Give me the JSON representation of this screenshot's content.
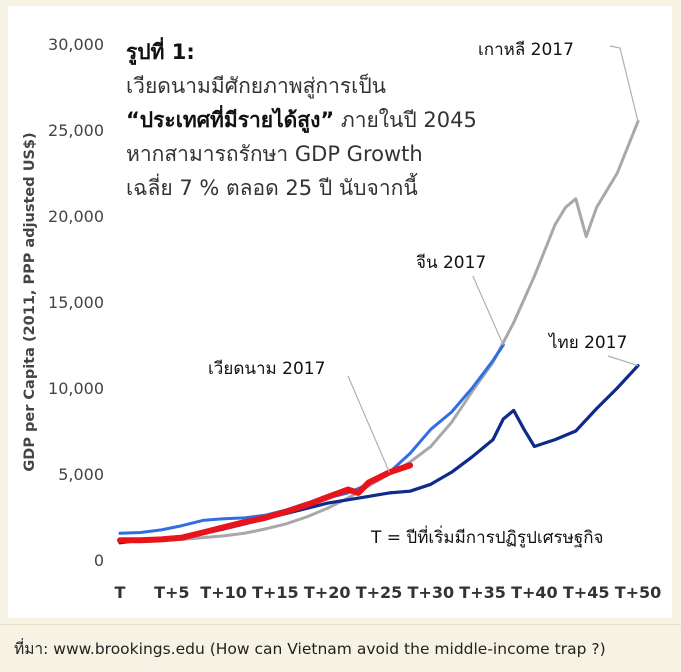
{
  "chart_data": {
    "type": "line",
    "title": "รูปที่ 1:",
    "subtitle_lines": [
      "เวียดนามมีศักยภาพสู่การเป็น",
      "“ประเทศที่มีรายได้สูง” ภายในปี 2045",
      "หากสามารถรักษา GDP Growth",
      "เฉลี่ย 7 % ตลอด 25 ปี นับจากนี้"
    ],
    "subtitle_emphasis": "“ประเทศที่มีรายได้สูง”",
    "subtitle_rest": " ภายในปี 2045",
    "ylabel": "GDP per Capita (2011, PPP adjusted US$)",
    "xlabel": "",
    "ylim": [
      0,
      30000
    ],
    "yticks": [
      0,
      5000,
      10000,
      15000,
      20000,
      25000,
      30000
    ],
    "ytick_labels": [
      "0",
      "5,000",
      "10,000",
      "15,000",
      "20,000",
      "25,000",
      "30,000"
    ],
    "xlim": [
      0,
      50
    ],
    "xticks": [
      0,
      5,
      10,
      15,
      20,
      25,
      30,
      35,
      40,
      45,
      50
    ],
    "xtick_labels": [
      "T",
      "T+5",
      "T+10",
      "T+15",
      "T+20",
      "T+25",
      "T+30",
      "T+35",
      "T+40",
      "T+45",
      "T+50"
    ],
    "legend_note": "T =  ปีที่เริ่มมีการปฏิรูปเศรษฐกิจ",
    "grid": false,
    "series": [
      {
        "name": "เกาหลี 2017",
        "color": "#a8a8a8",
        "x": [
          0,
          2,
          4,
          6,
          8,
          10,
          12,
          14,
          16,
          18,
          20,
          22,
          24,
          26,
          28,
          30,
          32,
          34,
          36,
          38,
          40,
          42,
          43,
          44,
          45,
          46,
          48,
          50
        ],
        "values": [
          1050,
          1100,
          1150,
          1200,
          1300,
          1400,
          1550,
          1800,
          2100,
          2500,
          3000,
          3600,
          4300,
          5000,
          5700,
          6600,
          8000,
          9800,
          11500,
          13800,
          16500,
          19500,
          20500,
          21000,
          18800,
          20500,
          22500,
          25500
        ]
      },
      {
        "name": "จีน 2017",
        "color": "#2f6fe0",
        "x": [
          0,
          2,
          4,
          6,
          8,
          10,
          12,
          14,
          16,
          18,
          20,
          22,
          24,
          26,
          28,
          30,
          32,
          34,
          36,
          37
        ],
        "values": [
          1550,
          1600,
          1750,
          2000,
          2300,
          2400,
          2450,
          2600,
          2900,
          3300,
          3600,
          3900,
          4400,
          5100,
          6200,
          7600,
          8600,
          10000,
          11600,
          12500
        ]
      },
      {
        "name": "ไทย 2017",
        "color": "#0d2a8c",
        "x": [
          0,
          2,
          4,
          6,
          8,
          10,
          12,
          14,
          16,
          18,
          20,
          22,
          24,
          26,
          28,
          30,
          32,
          34,
          36,
          37,
          38,
          39,
          40,
          41,
          42,
          44,
          46,
          48,
          50
        ],
        "values": [
          1000,
          1150,
          1200,
          1300,
          1550,
          1800,
          2100,
          2400,
          2700,
          3000,
          3300,
          3500,
          3700,
          3900,
          4000,
          4400,
          5100,
          6000,
          7000,
          8200,
          8700,
          7600,
          6600,
          6800,
          7000,
          7500,
          8800,
          10000,
          11300
        ]
      },
      {
        "name": "เวียดนาม 2017",
        "color": "#e8141b",
        "x": [
          0,
          2,
          4,
          6,
          8,
          10,
          12,
          14,
          16,
          18,
          20,
          22,
          23,
          24,
          25,
          26,
          28
        ],
        "values": [
          1150,
          1150,
          1200,
          1300,
          1600,
          1900,
          2200,
          2450,
          2800,
          3200,
          3650,
          4100,
          3900,
          4500,
          4800,
          5100,
          5500
        ]
      }
    ],
    "annotations": [
      {
        "text": "เกาหลี 2017",
        "series": "เกาหลี 2017"
      },
      {
        "text": "จีน 2017",
        "series": "จีน 2017"
      },
      {
        "text": "ไทย 2017",
        "series": "ไทย 2017"
      },
      {
        "text": "เวียดนาม 2017",
        "series": "เวียดนาม 2017"
      }
    ]
  },
  "source_text": "ที่มา: www.brookings.edu (How can Vietnam avoid the middle-income trap ?)"
}
